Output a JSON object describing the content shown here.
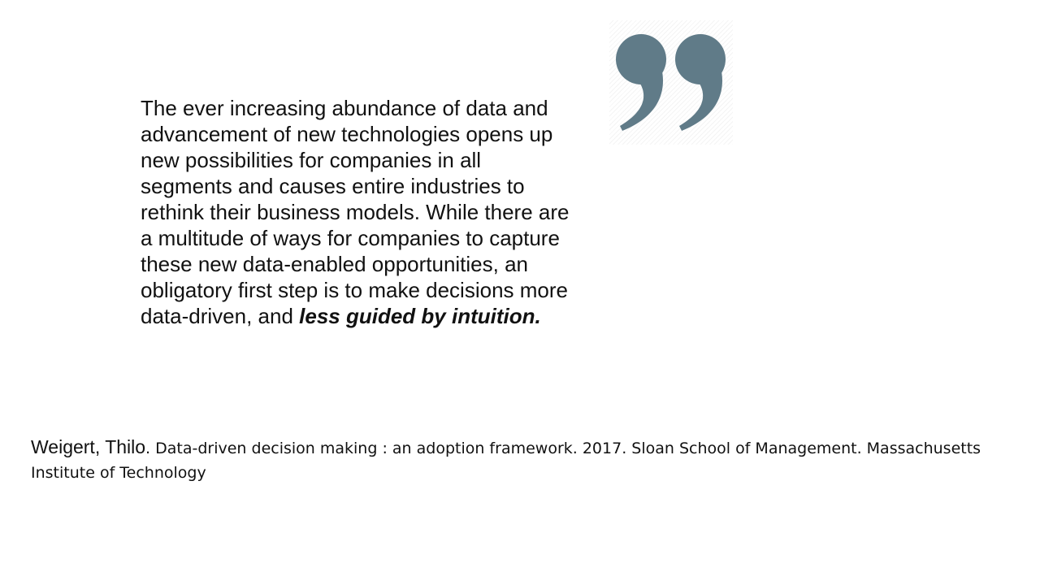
{
  "quote": {
    "text_main": "The ever increasing abundance of data and advancement of new technologies opens up new possibilities for companies in all segments and causes entire industries to rethink their business models. While there are a multitude of ways for companies to capture these new data-enabled opportunities, an obligatory first step is to make decisions more data-driven, and ",
    "text_emphasis": "less guided by intuition."
  },
  "quote_icon": {
    "icon": "closing-quotation-mark-icon",
    "color": "#607b88"
  },
  "citation": {
    "author": "Weigert, Thilo",
    "reference": ". Data-driven decision making : an adoption framework. 2017. Sloan School of Management. Massachusetts Institute of Technology"
  }
}
